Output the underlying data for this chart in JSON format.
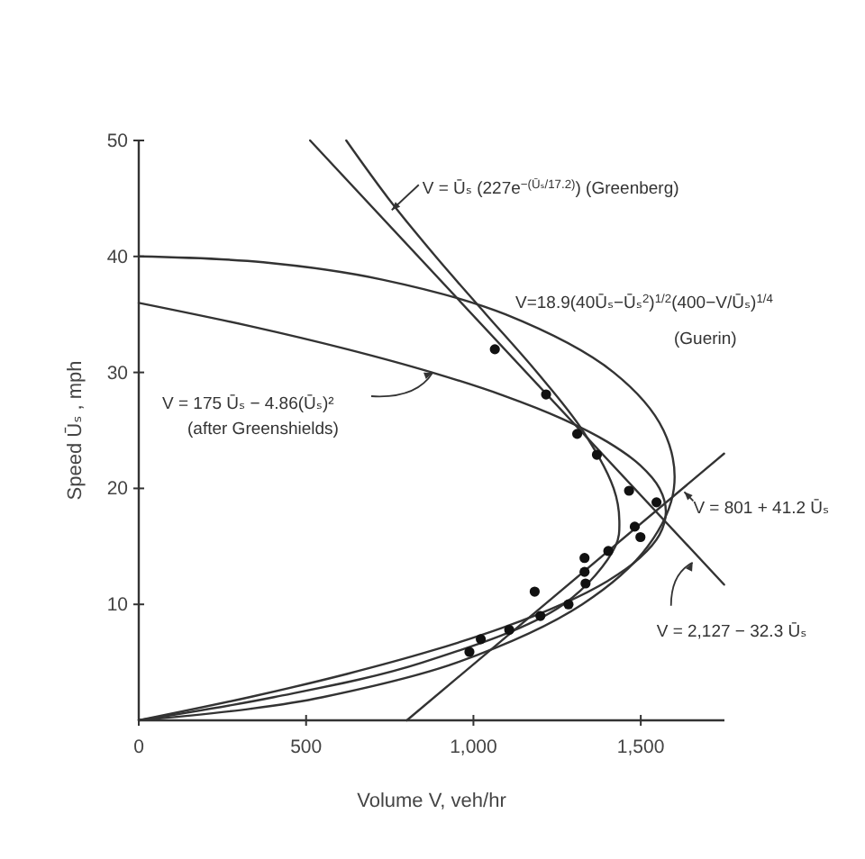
{
  "chart_data": {
    "type": "line",
    "xlabel": "Volume V, veh/hr",
    "ylabel": "Speed Ūₛ , mph",
    "xlim": [
      0,
      1750
    ],
    "ylim": [
      0,
      50
    ],
    "xticks": [
      0,
      500,
      {
        "value": 1000,
        "label": "1,000"
      },
      {
        "value": 1500,
        "label": "1,500"
      }
    ],
    "yticks": [
      10,
      20,
      30,
      40,
      50
    ],
    "grid": false,
    "series": [
      {
        "type": "scatter",
        "color": "#111111",
        "marker": "circle",
        "x": [
          1064,
          1217,
          1310,
          1369,
          1465,
          1547,
          1482,
          1499,
          1403,
          1332,
          1332,
          1335,
          1183,
          1284,
          1200,
          1107,
          1022,
          988
        ],
        "values": [
          32.0,
          28.1,
          24.7,
          22.9,
          19.8,
          18.8,
          16.7,
          15.8,
          14.6,
          14.0,
          12.8,
          11.8,
          11.1,
          10.0,
          9.0,
          7.8,
          7.0,
          5.9
        ]
      },
      {
        "color": "#333333",
        "line_style": "solid",
        "x": [
          0,
          331,
          622,
          875,
          1089,
          1264,
          1400,
          1497,
          1556,
          1575,
          1556,
          1498,
          1401,
          1265,
          1090,
          876,
          623,
          332,
          0
        ],
        "values": [
          0,
          2,
          4,
          6,
          8,
          10,
          12,
          14,
          16,
          18,
          20,
          22,
          24,
          26,
          28,
          30,
          32,
          34,
          36
        ]
      },
      {
        "color": "#333333",
        "line_style": "solid",
        "x": [
          0,
          404,
          849,
          1269,
          1424,
          1436,
          1419,
          1326,
          1190,
          1038,
          887,
          746,
          620
        ],
        "values": [
          0,
          2,
          5,
          10,
          15,
          17.2,
          20,
          25,
          30,
          35,
          40,
          45,
          50
        ]
      },
      {
        "color": "#333333",
        "line_style": "solid",
        "x": [
          0,
          335,
          550,
          952,
          1325,
          1521,
          1599,
          1568,
          1419,
          1096,
          728,
          372,
          0
        ],
        "values": [
          0,
          1,
          2,
          5,
          10,
          15,
          20,
          25,
          30,
          35,
          38,
          39.5,
          40
        ]
      },
      {
        "color": "#333333",
        "line_style": "solid",
        "x": [
          801,
          1749
        ],
        "values": [
          0,
          23
        ]
      },
      {
        "color": "#333333",
        "line_style": "solid",
        "x": [
          512,
          1749
        ],
        "values": [
          50,
          11.7
        ]
      }
    ],
    "annotations": [
      {
        "text": "V = Ūₛ (227e$^{−(Ūₛ/17.2)}$) (Greenberg)",
        "x": 756,
        "y": 44
      },
      "V=18.9(40Ūₛ−Ūₛ$^{2}$)$^{1/2}$(400−V/Ūₛ)$^{1/4}$",
      "(Guerin)",
      "V = 175 Ūₛ − 4.86(Ūₛ)²",
      "(after Greenshields)",
      {
        "text": "V = 801 + 41.2 Ūₛ",
        "x": 1630,
        "y": 19.7
      },
      {
        "text": "V = 2,127 − 32.3 Ūₛ",
        "x": 1655,
        "y": 13.6
      }
    ]
  }
}
